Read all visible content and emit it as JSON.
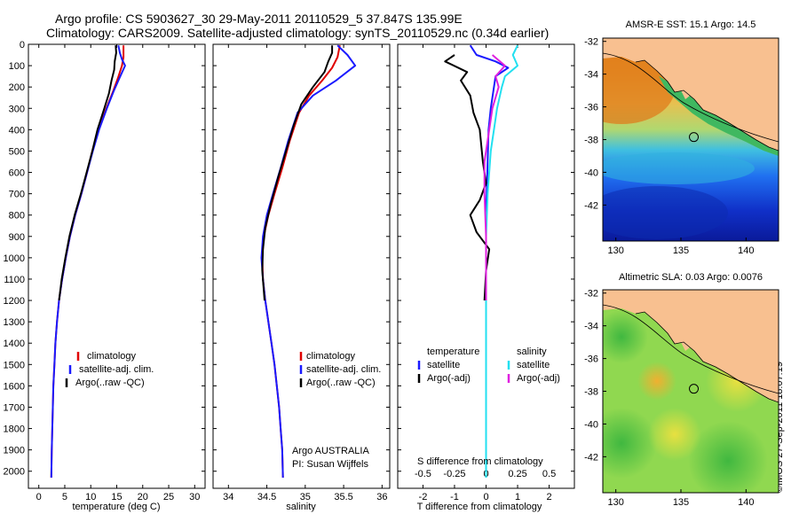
{
  "header": {
    "title_line1": "Argo profile: CS 5903627_30 29-May-2011 20110529_5 37.847S 135.99E",
    "title_line2": "Climatology: CARS2009. Satellite-adjusted climatology: synTS_20110529.nc (0.34d earlier)"
  },
  "stamp": "©IMOS 27-Sep-2011 18:07:19",
  "colors": {
    "climatology": "#e00000",
    "satellite": "#1a1aff",
    "argo": "#000000",
    "salinity_satellite": "#22e0f0",
    "salinity_argo": "#e020e0",
    "land": "#f8c090"
  },
  "chart_data": [
    {
      "type": "line",
      "title": "",
      "xlabel": "temperature (deg C)",
      "ylabel": "",
      "xlim": [
        -2,
        32
      ],
      "ylim": [
        2080,
        0
      ],
      "xticks": [
        "0",
        "5",
        "10",
        "15",
        "20",
        "25",
        "30"
      ],
      "yticks": [
        "0",
        "100",
        "200",
        "300",
        "400",
        "500",
        "600",
        "700",
        "800",
        "900",
        "1000",
        "1100",
        "1200",
        "1300",
        "1400",
        "1500",
        "1600",
        "1700",
        "1800",
        "1900",
        "2000"
      ],
      "legend": [
        "climatology",
        "satellite-adj. clim.",
        "Argo(..raw -QC)"
      ],
      "legend_position": "lower-center",
      "series": [
        {
          "name": "climatology",
          "color": "#e00000",
          "points": [
            [
              16.3,
              5
            ],
            [
              16.3,
              60
            ],
            [
              16.0,
              100
            ],
            [
              15.2,
              160
            ],
            [
              14.3,
              220
            ],
            [
              13.0,
              300
            ],
            [
              11.5,
              400
            ],
            [
              10.3,
              500
            ],
            [
              9.3,
              600
            ],
            [
              8.2,
              700
            ],
            [
              7.0,
              800
            ],
            [
              6.0,
              900
            ],
            [
              5.2,
              1000
            ],
            [
              4.5,
              1100
            ],
            [
              3.9,
              1200
            ],
            [
              3.5,
              1300
            ],
            [
              3.2,
              1400
            ],
            [
              3.0,
              1500
            ],
            [
              2.8,
              1600
            ],
            [
              2.7,
              1700
            ],
            [
              2.6,
              1800
            ],
            [
              2.5,
              1900
            ],
            [
              2.4,
              2030
            ]
          ]
        },
        {
          "name": "satellite-adj. clim.",
          "color": "#1a1aff",
          "points": [
            [
              15.3,
              5
            ],
            [
              15.6,
              40
            ],
            [
              16.0,
              70
            ],
            [
              16.6,
              100
            ],
            [
              15.5,
              160
            ],
            [
              14.4,
              220
            ],
            [
              13.1,
              300
            ],
            [
              11.6,
              400
            ],
            [
              10.4,
              500
            ],
            [
              9.3,
              600
            ],
            [
              8.2,
              700
            ],
            [
              7.0,
              800
            ],
            [
              6.0,
              900
            ],
            [
              5.2,
              1000
            ],
            [
              4.5,
              1100
            ],
            [
              3.9,
              1200
            ],
            [
              3.5,
              1300
            ],
            [
              3.2,
              1400
            ],
            [
              3.0,
              1500
            ],
            [
              2.8,
              1600
            ],
            [
              2.7,
              1700
            ],
            [
              2.6,
              1800
            ],
            [
              2.5,
              1900
            ],
            [
              2.4,
              2030
            ]
          ]
        },
        {
          "name": "Argo(..raw -QC)",
          "color": "#000000",
          "points": [
            [
              14.8,
              5
            ],
            [
              14.9,
              40
            ],
            [
              14.6,
              80
            ],
            [
              14.5,
              120
            ],
            [
              14.0,
              170
            ],
            [
              13.5,
              230
            ],
            [
              12.6,
              300
            ],
            [
              11.3,
              400
            ],
            [
              10.3,
              500
            ],
            [
              9.2,
              600
            ],
            [
              8.1,
              700
            ],
            [
              6.9,
              800
            ],
            [
              5.9,
              900
            ],
            [
              5.1,
              1000
            ],
            [
              4.4,
              1100
            ],
            [
              3.9,
              1200
            ]
          ]
        }
      ]
    },
    {
      "type": "line",
      "title": "",
      "xlabel": "salinity",
      "ylabel": "",
      "xlim": [
        33.8,
        36.1
      ],
      "ylim": [
        2080,
        0
      ],
      "xticks": [
        "34",
        "34.5",
        "35",
        "35.5",
        "36"
      ],
      "legend": [
        "climatology",
        "satellite-adj. clim.",
        "Argo(..raw -QC)"
      ],
      "legend_position": "lower-right",
      "annotations": [
        "Argo AUSTRALIA",
        "PI: Susan Wijffels"
      ],
      "series": [
        {
          "name": "climatology",
          "color": "#e00000",
          "points": [
            [
              35.45,
              5
            ],
            [
              35.42,
              60
            ],
            [
              35.35,
              110
            ],
            [
              35.22,
              170
            ],
            [
              35.05,
              240
            ],
            [
              34.92,
              320
            ],
            [
              34.8,
              450
            ],
            [
              34.7,
              580
            ],
            [
              34.6,
              700
            ],
            [
              34.52,
              800
            ],
            [
              34.46,
              900
            ],
            [
              34.44,
              1000
            ],
            [
              34.45,
              1100
            ],
            [
              34.48,
              1200
            ],
            [
              34.52,
              1300
            ],
            [
              34.56,
              1400
            ],
            [
              34.6,
              1500
            ],
            [
              34.63,
              1600
            ],
            [
              34.66,
              1700
            ],
            [
              34.68,
              1800
            ],
            [
              34.7,
              1900
            ],
            [
              34.71,
              2030
            ]
          ]
        },
        {
          "name": "satellite-adj. clim.",
          "color": "#1a1aff",
          "points": [
            [
              35.42,
              5
            ],
            [
              35.55,
              50
            ],
            [
              35.65,
              100
            ],
            [
              35.4,
              170
            ],
            [
              35.1,
              240
            ],
            [
              34.9,
              320
            ],
            [
              34.78,
              450
            ],
            [
              34.68,
              580
            ],
            [
              34.58,
              700
            ],
            [
              34.5,
              800
            ],
            [
              34.45,
              900
            ],
            [
              34.43,
              1000
            ],
            [
              34.45,
              1100
            ],
            [
              34.48,
              1200
            ],
            [
              34.52,
              1300
            ],
            [
              34.56,
              1400
            ],
            [
              34.6,
              1500
            ],
            [
              34.63,
              1600
            ],
            [
              34.66,
              1700
            ],
            [
              34.68,
              1800
            ],
            [
              34.7,
              1900
            ],
            [
              34.71,
              2030
            ]
          ]
        },
        {
          "name": "Argo(..raw -QC)",
          "color": "#000000",
          "points": [
            [
              35.35,
              5
            ],
            [
              35.35,
              40
            ],
            [
              35.3,
              80
            ],
            [
              35.25,
              130
            ],
            [
              35.1,
              200
            ],
            [
              34.95,
              280
            ],
            [
              34.85,
              380
            ],
            [
              34.75,
              500
            ],
            [
              34.65,
              620
            ],
            [
              34.55,
              750
            ],
            [
              34.48,
              860
            ],
            [
              34.45,
              960
            ],
            [
              34.44,
              1060
            ],
            [
              34.47,
              1200
            ]
          ]
        }
      ]
    },
    {
      "type": "line",
      "title": "",
      "xlabel": "T difference from climatology",
      "xlabel_top": "S difference from climatology",
      "ylabel": "",
      "xlim": [
        -2.8,
        2.8
      ],
      "ylim": [
        2080,
        0
      ],
      "xticks": [
        "-2",
        "-1",
        "0",
        "1",
        "2"
      ],
      "xticks_top": [
        "-0.5",
        "-0.25",
        "0",
        "0.25",
        "0.5"
      ],
      "legend": [
        "temperature",
        "satellite",
        "Argo(-adj)",
        "salinity",
        "satellite",
        "Argo(-adj)"
      ],
      "legend_position": "lower-center",
      "series": [
        {
          "name": "satellite",
          "color": "#1a1aff",
          "points": [
            [
              -0.5,
              5
            ],
            [
              -0.3,
              50
            ],
            [
              0.3,
              80
            ],
            [
              0.7,
              110
            ],
            [
              0.3,
              150
            ],
            [
              0.25,
              200
            ],
            [
              0.15,
              300
            ],
            [
              0.08,
              400
            ],
            [
              0.05,
              550
            ],
            [
              0,
              800
            ],
            [
              0,
              1200
            ],
            [
              0,
              2030
            ]
          ]
        },
        {
          "name": "Argo(-adj)",
          "color": "#000000",
          "points": [
            [
              -1.0,
              50
            ],
            [
              -1.3,
              80
            ],
            [
              -0.6,
              130
            ],
            [
              -0.8,
              170
            ],
            [
              -0.5,
              240
            ],
            [
              -0.4,
              320
            ],
            [
              -0.2,
              400
            ],
            [
              -0.1,
              550
            ],
            [
              0,
              650
            ],
            [
              -0.2,
              730
            ],
            [
              -0.5,
              800
            ],
            [
              -0.3,
              880
            ],
            [
              0.1,
              960
            ],
            [
              0,
              1060
            ],
            [
              -0.05,
              1200
            ]
          ]
        },
        {
          "name": "satellite",
          "color": "#22e0f0",
          "points": [
            [
              1.0,
              5
            ],
            [
              0.85,
              50
            ],
            [
              1.0,
              100
            ],
            [
              0.6,
              150
            ],
            [
              0.5,
              200
            ],
            [
              0.35,
              300
            ],
            [
              0.25,
              400
            ],
            [
              0.15,
              500
            ],
            [
              0.05,
              700
            ],
            [
              0,
              900
            ],
            [
              0,
              2030
            ]
          ]
        },
        {
          "name": "Argo(-adj)",
          "color": "#e020e0",
          "points": [
            [
              0.2,
              50
            ],
            [
              0.6,
              100
            ],
            [
              0.3,
              150
            ],
            [
              0.4,
              200
            ],
            [
              0.2,
              300
            ],
            [
              0.1,
              400
            ],
            [
              -0.05,
              550
            ],
            [
              -0.05,
              700
            ],
            [
              0,
              900
            ],
            [
              0,
              1200
            ]
          ]
        }
      ]
    },
    {
      "type": "heatmap",
      "title": "AMSR-E SST: 15.1 Argo: 14.5",
      "xticks": [
        "130",
        "135",
        "140"
      ],
      "yticks": [
        "-32",
        "-34",
        "-36",
        "-38",
        "-40",
        "-42"
      ],
      "xlim": [
        129.0,
        142.5
      ],
      "ylim": [
        -44.2,
        -31.8
      ],
      "marker": [
        135.99,
        -37.847
      ]
    },
    {
      "type": "heatmap",
      "title": "Altimetric SLA: 0.03 Argo: 0.0076",
      "xticks": [
        "130",
        "135",
        "140"
      ],
      "yticks": [
        "-32",
        "-34",
        "-36",
        "-38",
        "-40",
        "-42"
      ],
      "xlim": [
        129.0,
        142.5
      ],
      "ylim": [
        -44.2,
        -31.8
      ],
      "marker": [
        135.99,
        -37.847
      ]
    }
  ]
}
